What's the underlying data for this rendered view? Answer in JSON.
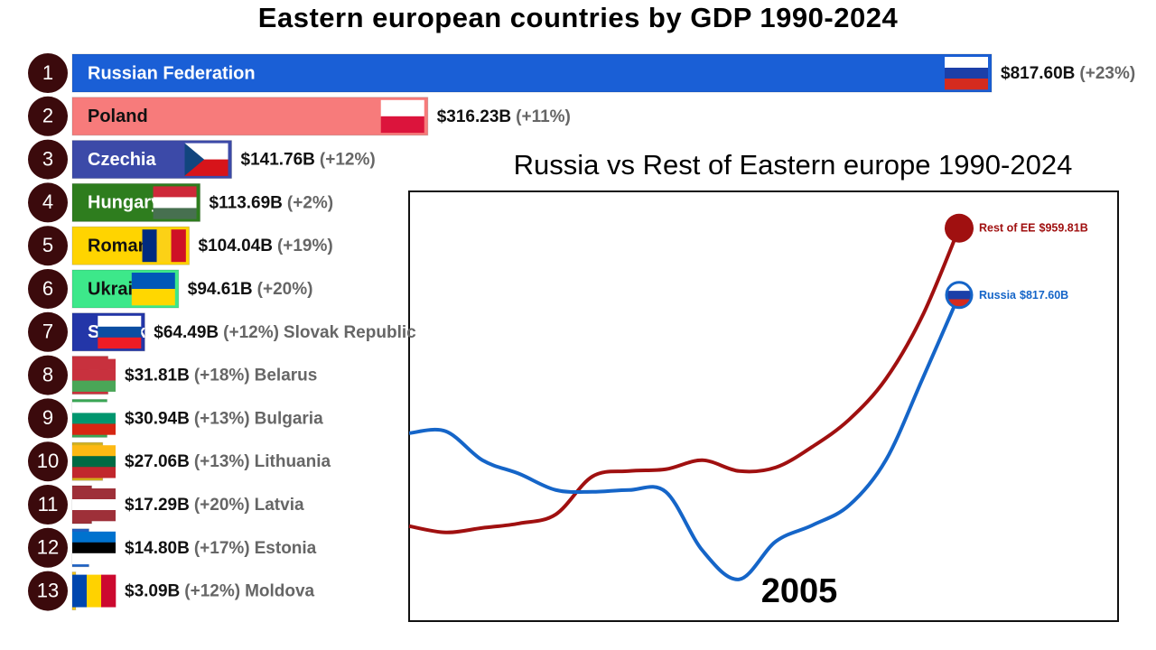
{
  "chart_data": [
    {
      "type": "hbar",
      "title": "Eastern european countries by GDP 1990-2024",
      "ranks": [
        1,
        2,
        3,
        4,
        5,
        6,
        7,
        8,
        9,
        10,
        11,
        12,
        13
      ],
      "categories": [
        "Russian Federation",
        "Poland",
        "Czechia",
        "Hungary",
        "Romania",
        "Ukraine",
        "Slovak Republic",
        "Belarus",
        "Bulgaria",
        "Lithuania",
        "Latvia",
        "Estonia",
        "Moldova"
      ],
      "values": [
        817.6,
        316.23,
        141.76,
        113.69,
        104.04,
        94.61,
        64.49,
        31.81,
        30.94,
        27.06,
        17.29,
        14.8,
        3.09
      ],
      "value_labels": [
        "$817.60B",
        "$316.23B",
        "$141.76B",
        "$113.69B",
        "$104.04B",
        "$94.61B",
        "$64.49B",
        "$31.81B",
        "$30.94B",
        "$27.06B",
        "$17.29B",
        "$14.80B",
        "$3.09B"
      ],
      "changes": [
        "(+23%)",
        "(+11%)",
        "(+12%)",
        "(+2%)",
        "(+19%)",
        "(+20%)",
        "(+12%)",
        "(+18%)",
        "(+13%)",
        "(+13%)",
        "(+20%)",
        "(+17%)",
        "(+12%)"
      ],
      "colors": [
        "#1a5fd6",
        "#f77b7b",
        "#3c4aa8",
        "#2e7d1e",
        "#ffd400",
        "#3de88a",
        "#2336a8",
        "#c8303a",
        "#3aa655",
        "#d4b21d",
        "#9e3039",
        "#1f62c4",
        "#f4c61b"
      ]
    },
    {
      "type": "line",
      "title": "Russia vs Rest of Eastern europe 1990-2024",
      "annotation": "2005",
      "ylim": [
        124,
        1038
      ],
      "series": [
        {
          "name": "Rest of EE",
          "color": "#a01010",
          "end_label": "$959.81B",
          "values": [
            326.1,
            312.6,
            322.2,
            331.8,
            351.0,
            431.7,
            443.2,
            447.0,
            466.2,
            443.2,
            450.9,
            495.0,
            552.6,
            639.0,
            773.4,
            959.81
          ]
        },
        {
          "name": "Russia",
          "color": "#1565c8",
          "end_label": "$817.60B",
          "values": [
            523.8,
            527.7,
            466.2,
            437.4,
            402.9,
            399.0,
            402.9,
            399.0,
            274.2,
            212.8,
            293.4,
            328.0,
            370.2,
            466.2,
            639.0,
            817.6
          ]
        }
      ]
    }
  ]
}
